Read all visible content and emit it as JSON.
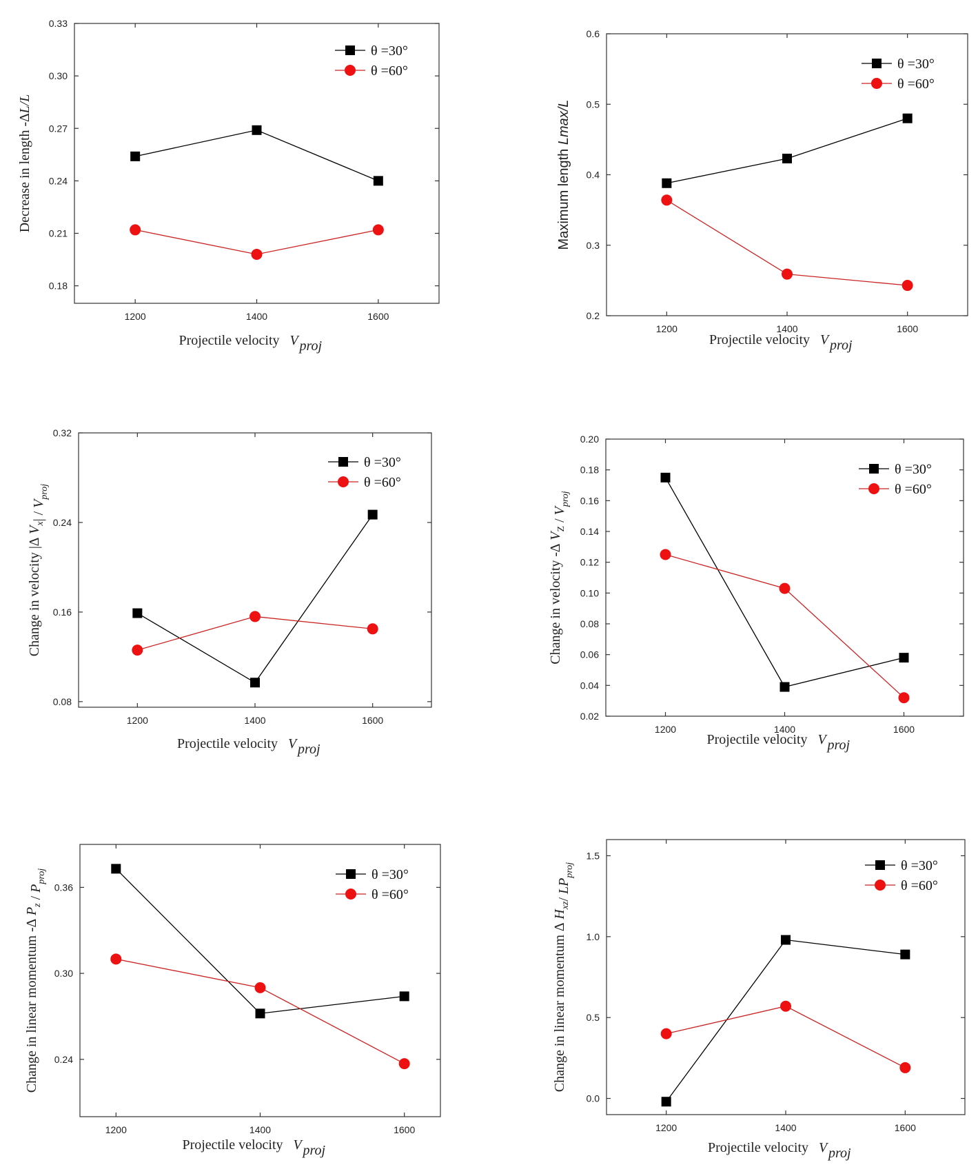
{
  "colors": {
    "series1": "#000000",
    "series2": "#ee1111",
    "line2": "#cc2222",
    "axis": "#333333"
  },
  "chart_data": [
    {
      "type": "line",
      "x": [
        1200,
        1400,
        1600
      ],
      "xlim": [
        1100,
        1700
      ],
      "xticks": [
        "1200",
        "1400",
        "1600"
      ],
      "ylim": [
        0.17,
        0.33
      ],
      "yticks": [
        "0.18",
        "0.21",
        "0.24",
        "0.27",
        "0.30",
        "0.33"
      ],
      "ylabel": "Decrease in length -∆L/L",
      "xlabel": "Projectile velocity",
      "xlabel_sub": "V",
      "xlabel_subscript": "proj",
      "series": [
        {
          "name": "θ =30°",
          "values": [
            0.254,
            0.269,
            0.24
          ]
        },
        {
          "name": "θ =60°",
          "values": [
            0.212,
            0.198,
            0.212
          ]
        }
      ]
    },
    {
      "type": "line",
      "x": [
        1200,
        1400,
        1600
      ],
      "xlim": [
        1100,
        1700
      ],
      "xticks": [
        "1200",
        "1400",
        "1600"
      ],
      "ylim": [
        0.2,
        0.6
      ],
      "yticks": [
        "0.2",
        "0.3",
        "0.4",
        "0.5",
        "0.6"
      ],
      "ylabel": "Maximum length Lmax/L",
      "xlabel": "Projectile velocity",
      "xlabel_sub": "V",
      "xlabel_subscript": "proj",
      "series": [
        {
          "name": "θ =30°",
          "values": [
            0.388,
            0.423,
            0.48
          ]
        },
        {
          "name": "θ =60°",
          "values": [
            0.364,
            0.259,
            0.243
          ]
        }
      ]
    },
    {
      "type": "line",
      "x": [
        1200,
        1400,
        1600
      ],
      "xlim": [
        1100,
        1700
      ],
      "xticks": [
        "1200",
        "1400",
        "1600"
      ],
      "ylim": [
        0.075,
        0.32
      ],
      "yticks": [
        "0.08",
        "0.16",
        "0.24",
        "0.32"
      ],
      "ylabel": "Change in velocity |∆Vx| / Vproj",
      "xlabel": "Projectile velocity",
      "xlabel_sub": "V",
      "xlabel_subscript": "proj",
      "series": [
        {
          "name": "θ =30°",
          "values": [
            0.159,
            0.097,
            0.247
          ]
        },
        {
          "name": "θ =60°",
          "values": [
            0.126,
            0.156,
            0.145
          ]
        }
      ]
    },
    {
      "type": "line",
      "x": [
        1200,
        1400,
        1600
      ],
      "xlim": [
        1100,
        1700
      ],
      "xticks": [
        "1200",
        "1400",
        "1600"
      ],
      "ylim": [
        0.02,
        0.2
      ],
      "yticks": [
        "0.02",
        "0.04",
        "0.06",
        "0.08",
        "0.10",
        "0.12",
        "0.14",
        "0.16",
        "0.18",
        "0.20"
      ],
      "ylabel": "Change in velocity -∆VZ / Vproj",
      "xlabel": "Projectile velocity",
      "xlabel_sub": "V",
      "xlabel_subscript": "proj",
      "series": [
        {
          "name": "θ =30°",
          "values": [
            0.175,
            0.039,
            0.058
          ]
        },
        {
          "name": "θ =60°",
          "values": [
            0.125,
            0.103,
            0.032
          ]
        }
      ]
    },
    {
      "type": "line",
      "x": [
        1200,
        1400,
        1600
      ],
      "xlim": [
        1150,
        1650
      ],
      "xticks": [
        "1200",
        "1400",
        "1600"
      ],
      "ylim": [
        0.2,
        0.39
      ],
      "yticks": [
        "0.24",
        "0.30",
        "0.36"
      ],
      "ylabel": "Change in linear momentum -∆Pz / Pproj",
      "xlabel": "Projectile velocity",
      "xlabel_sub": "V",
      "xlabel_subscript": "proj",
      "series": [
        {
          "name": "θ =30°",
          "values": [
            0.373,
            0.272,
            0.284
          ]
        },
        {
          "name": "θ =60°",
          "values": [
            0.31,
            0.29,
            0.237
          ]
        }
      ]
    },
    {
      "type": "line",
      "x": [
        1200,
        1400,
        1600
      ],
      "xlim": [
        1100,
        1700
      ],
      "xticks": [
        "1200",
        "1400",
        "1600"
      ],
      "ylim": [
        -0.1,
        1.6
      ],
      "yticks": [
        "0.0",
        "0.5",
        "1.0",
        "1.5"
      ],
      "ylabel": "Change in linear momentum ∆Hxz/ LPproj",
      "xlabel": "Projectile velocity",
      "xlabel_sub": "V",
      "xlabel_subscript": "proj",
      "series": [
        {
          "name": "θ =30°",
          "values": [
            -0.02,
            0.98,
            0.89
          ]
        },
        {
          "name": "θ =60°",
          "values": [
            0.4,
            0.57,
            0.19
          ]
        }
      ]
    }
  ]
}
